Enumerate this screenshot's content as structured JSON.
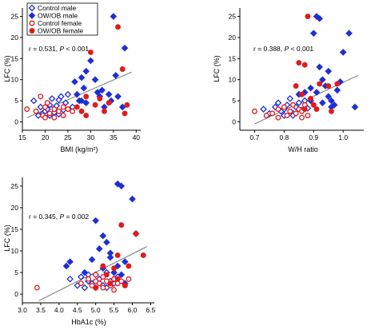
{
  "legend": {
    "items": [
      {
        "label": "Control male",
        "marker": "diamond",
        "filled": false,
        "color": "#1f2fd6"
      },
      {
        "label": "OW/OB male",
        "marker": "diamond",
        "filled": true,
        "color": "#1f2fd6"
      },
      {
        "label": "Control female",
        "marker": "circle",
        "filled": false,
        "color": "#e11a1a"
      },
      {
        "label": "OW/OB female",
        "marker": "circle",
        "filled": true,
        "color": "#e11a1a"
      }
    ]
  },
  "colors": {
    "male": "#1f2fd6",
    "female": "#e11a1a",
    "fit_line": "#777777"
  },
  "chart_data": [
    {
      "type": "scatter",
      "xlabel": "BMI (kg/m²)",
      "ylabel": "LFC (%)",
      "stat": {
        "r_text": "r = 0.531, ",
        "p_symbol": "P",
        "p_text": " < 0.001"
      },
      "xlim": [
        15,
        41
      ],
      "ylim": [
        -2,
        27
      ],
      "xticks": [
        15,
        20,
        25,
        30,
        35,
        40
      ],
      "yticks": [
        0,
        5,
        10,
        15,
        20,
        25
      ],
      "fit_line": [
        [
          16,
          1.0
        ],
        [
          39,
          11.8
        ]
      ],
      "series": [
        {
          "name": "Control male",
          "points": [
            [
              17.5,
              5.0
            ],
            [
              18.5,
              1.5
            ],
            [
              19,
              3.5
            ],
            [
              19.5,
              2.0
            ],
            [
              20,
              2.5
            ],
            [
              20.5,
              3.0
            ],
            [
              21,
              4.0
            ],
            [
              21.5,
              5.5
            ],
            [
              22,
              2.2
            ],
            [
              22.5,
              3.8
            ],
            [
              23,
              5.2
            ],
            [
              23.5,
              6.0
            ],
            [
              24,
              2.8
            ],
            [
              24.5,
              4.5
            ],
            [
              25,
              6.5
            ],
            [
              21,
              1.5
            ],
            [
              23,
              1.8
            ],
            [
              26,
              3.5
            ]
          ]
        },
        {
          "name": "OW/OB male",
          "points": [
            [
              27,
              6.5
            ],
            [
              27.5,
              5.0
            ],
            [
              28,
              10.5
            ],
            [
              28.5,
              8.0
            ],
            [
              29,
              12.0
            ],
            [
              29.5,
              21.5
            ],
            [
              30,
              14.5
            ],
            [
              30.5,
              21.5
            ],
            [
              31,
              10.0
            ],
            [
              31.5,
              7.0
            ],
            [
              32,
              6.0
            ],
            [
              32.5,
              7.5
            ],
            [
              33,
              3.5
            ],
            [
              34,
              6.5
            ],
            [
              34.5,
              5.0
            ],
            [
              35,
              25.0
            ],
            [
              35.5,
              11.0
            ],
            [
              36,
              6.0
            ],
            [
              37,
              3.5
            ],
            [
              37.5,
              17.5
            ],
            [
              28,
              5.0
            ],
            [
              30,
              22.0
            ],
            [
              26.5,
              9.5
            ],
            [
              29,
              4.5
            ]
          ]
        },
        {
          "name": "Control female",
          "points": [
            [
              16,
              3.0
            ],
            [
              18,
              2.5
            ],
            [
              19,
              6.0
            ],
            [
              19.5,
              1.5
            ],
            [
              20,
              3.5
            ],
            [
              20.5,
              4.5
            ],
            [
              21,
              2.0
            ],
            [
              22,
              3.0
            ],
            [
              23,
              2.5
            ],
            [
              24,
              3.5
            ],
            [
              25,
              3.0
            ],
            [
              26,
              2.5
            ],
            [
              20,
              1.0
            ],
            [
              22,
              1.0
            ],
            [
              24,
              1.5
            ]
          ]
        },
        {
          "name": "OW/OB female",
          "points": [
            [
              27,
              3.5
            ],
            [
              28,
              2.5
            ],
            [
              29,
              6.0
            ],
            [
              30,
              16.5
            ],
            [
              31,
              4.0
            ],
            [
              32,
              5.5
            ],
            [
              33,
              2.5
            ],
            [
              34,
              4.5
            ],
            [
              36,
              22.5
            ],
            [
              37,
              12.5
            ],
            [
              37.5,
              2.0
            ],
            [
              38,
              4.0
            ],
            [
              29,
              1.5
            ]
          ]
        }
      ]
    },
    {
      "type": "scatter",
      "xlabel": "W/H ratio",
      "ylabel": "LFC (%)",
      "stat": {
        "r_text": "r = 0.388, ",
        "p_symbol": "P",
        "p_text": " < 0.001"
      },
      "xlim": [
        0.65,
        1.07
      ],
      "ylim": [
        -2,
        27
      ],
      "xticks": [
        0.7,
        0.8,
        0.9,
        1.0
      ],
      "xtick_labels": [
        "0.7",
        "0.8",
        "0.9",
        "1.0"
      ],
      "yticks": [
        0,
        5,
        10,
        15,
        20,
        25
      ],
      "fit_line": [
        [
          0.7,
          -0.5
        ],
        [
          1.05,
          11.0
        ]
      ],
      "series": [
        {
          "name": "Control male",
          "points": [
            [
              0.73,
              3.0
            ],
            [
              0.75,
              2.0
            ],
            [
              0.77,
              3.5
            ],
            [
              0.78,
              4.5
            ],
            [
              0.79,
              2.5
            ],
            [
              0.8,
              3.0
            ],
            [
              0.81,
              4.0
            ],
            [
              0.82,
              5.5
            ],
            [
              0.83,
              2.0
            ],
            [
              0.84,
              3.5
            ],
            [
              0.85,
              4.5
            ],
            [
              0.86,
              2.8
            ],
            [
              0.87,
              5.0
            ],
            [
              0.88,
              3.2
            ],
            [
              0.8,
              1.5
            ],
            [
              0.83,
              1.5
            ]
          ]
        },
        {
          "name": "OW/OB male",
          "points": [
            [
              0.85,
              6.5
            ],
            [
              0.87,
              7.0
            ],
            [
              0.89,
              8.0
            ],
            [
              0.9,
              21.0
            ],
            [
              0.91,
              25.0
            ],
            [
              0.92,
              13.0
            ],
            [
              0.93,
              10.0
            ],
            [
              0.94,
              8.5
            ],
            [
              0.95,
              6.0
            ],
            [
              0.96,
              5.0
            ],
            [
              0.97,
              4.0
            ],
            [
              0.98,
              7.5
            ],
            [
              0.99,
              9.5
            ],
            [
              1.0,
              16.5
            ],
            [
              1.02,
              21.0
            ],
            [
              1.04,
              3.5
            ],
            [
              0.92,
              24.5
            ],
            [
              0.95,
              12.0
            ],
            [
              0.96,
              3.5
            ],
            [
              0.89,
              5.0
            ],
            [
              0.93,
              4.5
            ],
            [
              0.91,
              7.0
            ]
          ]
        },
        {
          "name": "Control female",
          "points": [
            [
              0.7,
              2.5
            ],
            [
              0.74,
              1.5
            ],
            [
              0.76,
              2.0
            ],
            [
              0.78,
              3.0
            ],
            [
              0.8,
              3.5
            ],
            [
              0.82,
              2.5
            ],
            [
              0.83,
              4.0
            ],
            [
              0.84,
              2.0
            ],
            [
              0.85,
              3.0
            ],
            [
              0.86,
              2.5
            ],
            [
              0.87,
              4.0
            ],
            [
              0.88,
              1.5
            ],
            [
              0.78,
              1.0
            ],
            [
              0.81,
              1.5
            ],
            [
              0.86,
              1.0
            ]
          ]
        },
        {
          "name": "OW/OB female",
          "points": [
            [
              0.84,
              8.5
            ],
            [
              0.85,
              14.0
            ],
            [
              0.86,
              6.5
            ],
            [
              0.87,
              13.5
            ],
            [
              0.88,
              25.0
            ],
            [
              0.89,
              5.5
            ],
            [
              0.9,
              4.0
            ],
            [
              0.91,
              3.0
            ],
            [
              0.92,
              9.0
            ],
            [
              0.95,
              8.5
            ],
            [
              0.98,
              9.0
            ],
            [
              0.96,
              2.5
            ],
            [
              0.87,
              3.0
            ]
          ]
        }
      ]
    },
    {
      "type": "scatter",
      "xlabel": "HbA1c (%)",
      "ylabel": "LFC (%)",
      "stat": {
        "r_text": "r = 0.345, ",
        "p_symbol": "P",
        "p_text": " = 0.002"
      },
      "xlim": [
        3.0,
        6.6
      ],
      "ylim": [
        -2,
        27
      ],
      "xticks": [
        3.0,
        3.5,
        4.0,
        4.5,
        5.0,
        5.5,
        6.0,
        6.5
      ],
      "xtick_labels": [
        "3.0",
        "3.5",
        "4.0",
        "4.5",
        "5.0",
        "5.5",
        "6.0",
        "6.5"
      ],
      "yticks": [
        0,
        5,
        10,
        15,
        20,
        25
      ],
      "fit_line": [
        [
          3.45,
          -1.5
        ],
        [
          6.4,
          11.0
        ]
      ],
      "series": [
        {
          "name": "Control male",
          "points": [
            [
              4.3,
              3.5
            ],
            [
              4.5,
              2.0
            ],
            [
              4.6,
              4.0
            ],
            [
              4.7,
              1.5
            ],
            [
              4.8,
              3.0
            ],
            [
              4.9,
              2.5
            ],
            [
              5.0,
              4.5
            ],
            [
              5.1,
              3.5
            ],
            [
              5.2,
              2.0
            ],
            [
              5.3,
              5.0
            ],
            [
              5.4,
              3.0
            ],
            [
              5.5,
              2.5
            ],
            [
              5.6,
              4.0
            ],
            [
              5.0,
              1.5
            ],
            [
              4.8,
              4.5
            ],
            [
              5.3,
              1.5
            ]
          ]
        },
        {
          "name": "OW/OB male",
          "points": [
            [
              4.2,
              6.5
            ],
            [
              4.3,
              7.5
            ],
            [
              4.7,
              5.0
            ],
            [
              4.9,
              8.0
            ],
            [
              5.0,
              17.0
            ],
            [
              5.1,
              10.5
            ],
            [
              5.2,
              13.5
            ],
            [
              5.3,
              12.0
            ],
            [
              5.4,
              8.5
            ],
            [
              5.5,
              5.0
            ],
            [
              5.6,
              25.5
            ],
            [
              5.7,
              25.0
            ],
            [
              5.8,
              7.5
            ],
            [
              6.0,
              22.0
            ],
            [
              6.1,
              14.0
            ],
            [
              5.5,
              3.5
            ],
            [
              5.6,
              6.5
            ],
            [
              5.7,
              4.5
            ],
            [
              5.8,
              2.5
            ],
            [
              5.2,
              6.0
            ],
            [
              5.4,
              9.5
            ]
          ]
        },
        {
          "name": "Control female",
          "points": [
            [
              3.4,
              1.5
            ],
            [
              4.6,
              2.5
            ],
            [
              4.8,
              3.5
            ],
            [
              4.9,
              2.0
            ],
            [
              5.0,
              3.0
            ],
            [
              5.1,
              2.5
            ],
            [
              5.2,
              4.0
            ],
            [
              5.3,
              3.0
            ],
            [
              5.4,
              2.0
            ],
            [
              5.5,
              3.5
            ],
            [
              5.6,
              2.5
            ],
            [
              5.7,
              3.0
            ],
            [
              5.8,
              2.0
            ],
            [
              5.9,
              3.5
            ],
            [
              5.2,
              1.5
            ],
            [
              5.5,
              1.0
            ],
            [
              5.0,
              4.5
            ]
          ]
        },
        {
          "name": "OW/OB female",
          "points": [
            [
              5.0,
              1.5
            ],
            [
              5.2,
              6.5
            ],
            [
              5.3,
              4.5
            ],
            [
              5.4,
              2.5
            ],
            [
              5.5,
              6.0
            ],
            [
              5.6,
              3.5
            ],
            [
              5.7,
              16.0
            ],
            [
              5.8,
              2.0
            ],
            [
              6.1,
              14.0
            ],
            [
              6.3,
              9.0
            ],
            [
              5.9,
              6.5
            ],
            [
              5.6,
              9.0
            ]
          ]
        }
      ]
    }
  ]
}
